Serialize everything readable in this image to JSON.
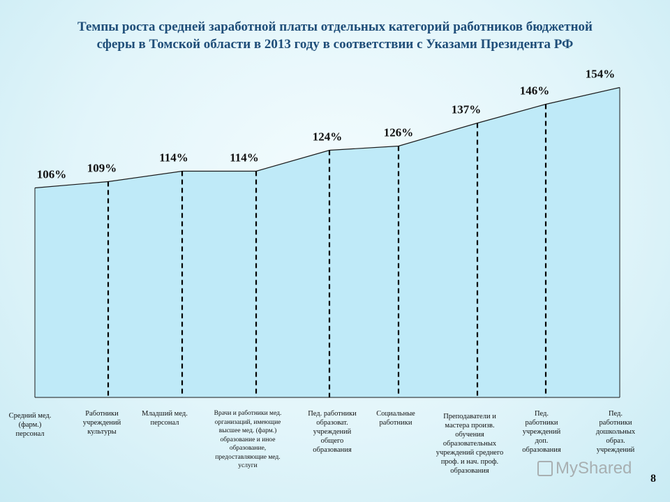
{
  "title": {
    "line1": "Темпы роста средней заработной платы отдельных категорий работников бюджетной",
    "line2": "сферы в Томской области в 2013 году  в соответствии с Указами Президента РФ"
  },
  "page_number": "8",
  "watermark": "MyShared",
  "colors": {
    "area_fill": "#bfeaf8",
    "area_stroke": "#1a1a1a",
    "title": "#1f4e79"
  },
  "chart_data": {
    "type": "area",
    "title": "",
    "xlabel": "",
    "ylabel": "",
    "categories": [
      "Средний мед. (фарм.) персонал",
      "Работники учреждений культуры",
      "Младший мед. персонал",
      "Врачи и работники мед. организаций, имеющие высшее мед. (фарм.) образование и иное образование, предоставляющие мед. услуги",
      "Пед. работники образоват. учреждений общего образования",
      "Социальные работники",
      "Преподаватели и мастера произв. обучения образовательных учреждений среднего проф. и нач. проф. образования",
      "Пед. работники учреждений доп. образования",
      "Пед. работники дошкольных образ. учреждений"
    ],
    "category_lines": [
      [
        "Средний мед.",
        "(фарм.)",
        "персонал"
      ],
      [
        "Работники",
        "учреждений",
        "культуры"
      ],
      [
        "Младший мед.",
        "персонал"
      ],
      [
        "Врачи и работники мед.",
        "организаций, имеющие",
        "высшее мед. (фарм.)",
        "образование и иное",
        "образование,",
        "предоставляющие мед.",
        "услуги"
      ],
      [
        "Пед. работники",
        "образоват.",
        "учреждений",
        "общего",
        "образования"
      ],
      [
        "Социальные",
        "работники"
      ],
      [
        "Преподаватели и",
        "мастера произв.",
        "обучения",
        "образовательных",
        "учреждений среднего",
        "проф. и нач. проф.",
        "образования"
      ],
      [
        "Пед.",
        "работники",
        "учреждений",
        "доп.",
        "образования"
      ],
      [
        "Пед.",
        "работники",
        "дошкольных",
        "образ.",
        "учреждений"
      ]
    ],
    "values": [
      106,
      109,
      114,
      114,
      124,
      126,
      137,
      146,
      154
    ],
    "data_labels": [
      "106%",
      "109%",
      "114%",
      "114%",
      "124%",
      "126%",
      "137%",
      "146%",
      "154%"
    ],
    "grid": false,
    "legend": "none"
  }
}
